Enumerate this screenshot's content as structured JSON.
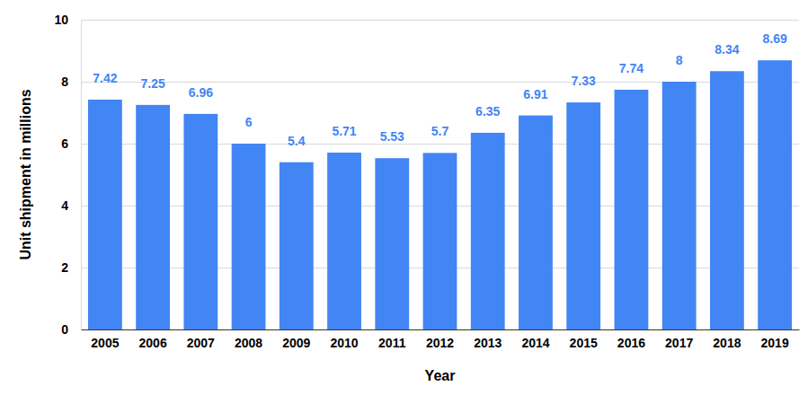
{
  "chart_data": {
    "type": "bar",
    "x_label": "Year",
    "y_label": "Unit shipment in millions",
    "categories": [
      "2005",
      "2006",
      "2007",
      "2008",
      "2009",
      "2010",
      "2011",
      "2012",
      "2013",
      "2014",
      "2015",
      "2016",
      "2017",
      "2018",
      "2019"
    ],
    "values": [
      7.42,
      7.25,
      6.96,
      6,
      5.4,
      5.71,
      5.53,
      5.7,
      6.35,
      6.91,
      7.33,
      7.74,
      8,
      8.34,
      8.69
    ],
    "color": "#4285f4",
    "ylim": [
      0,
      10
    ],
    "yticks": [
      0,
      2,
      4,
      6,
      8,
      10
    ],
    "grid": true,
    "data_labels": true
  }
}
